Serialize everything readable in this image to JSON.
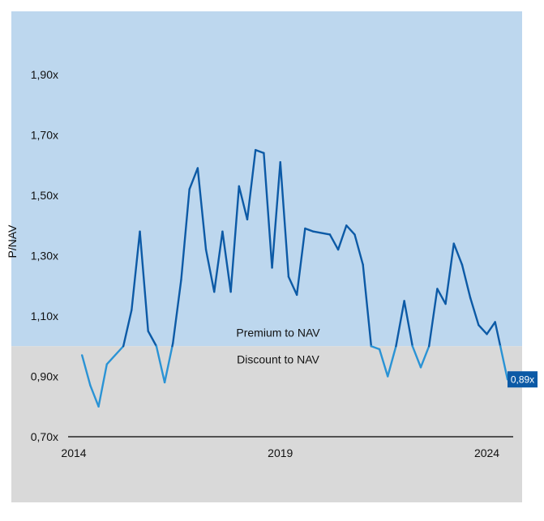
{
  "chart_data": {
    "type": "line",
    "ylabel": "P/NAV",
    "xlim": [
      2014.0,
      2024.9
    ],
    "ylim": [
      0.7,
      2.03
    ],
    "x_ticks": [
      {
        "value": 2014,
        "label": "2014"
      },
      {
        "value": 2019,
        "label": "2019"
      },
      {
        "value": 2024,
        "label": "2024"
      }
    ],
    "y_ticks": [
      {
        "value": 0.7,
        "label": "0,70x"
      },
      {
        "value": 0.9,
        "label": "0,90x"
      },
      {
        "value": 1.1,
        "label": "1,10x"
      },
      {
        "value": 1.3,
        "label": "1,30x"
      },
      {
        "value": 1.5,
        "label": "1,50x"
      },
      {
        "value": 1.7,
        "label": "1,70x"
      },
      {
        "value": 1.9,
        "label": "1,90x"
      }
    ],
    "threshold": 1.0,
    "premium_label": "Premium to NAV",
    "discount_label": "Discount to NAV",
    "end_label": "0,89x",
    "colors": {
      "premium_zone": "#bdd7ee",
      "discount_zone": "#d9d9d9",
      "line_premium": "#0c5aa6",
      "line_discount": "#2a93d5",
      "end_label_bg": "#0c5aa6",
      "axis": "#000000"
    },
    "grid": false,
    "series": [
      {
        "x": [
          2014.2,
          2014.4,
          2014.6,
          2014.8,
          2015.2,
          2015.4,
          2015.6,
          2015.8,
          2016.0,
          2016.2,
          2016.4,
          2016.6,
          2016.8,
          2017.0,
          2017.2,
          2017.4,
          2017.6,
          2017.8,
          2018.0,
          2018.2,
          2018.4,
          2018.6,
          2018.8,
          2019.0,
          2019.2,
          2019.4,
          2019.6,
          2019.8,
          2020.2,
          2020.4,
          2020.6,
          2020.8,
          2021.0,
          2021.2,
          2021.4,
          2021.6,
          2021.8,
          2022.0,
          2022.2,
          2022.4,
          2022.6,
          2022.8,
          2023.0,
          2023.2,
          2023.4,
          2023.6,
          2023.8,
          2024.0,
          2024.2,
          2024.5
        ],
        "y": [
          0.97,
          0.87,
          0.8,
          0.94,
          1.0,
          1.12,
          1.38,
          1.05,
          1.0,
          0.88,
          1.01,
          1.22,
          1.52,
          1.59,
          1.32,
          1.18,
          1.38,
          1.18,
          1.53,
          1.42,
          1.65,
          1.64,
          1.26,
          1.61,
          1.23,
          1.17,
          1.39,
          1.38,
          1.37,
          1.32,
          1.4,
          1.37,
          1.27,
          1.0,
          0.99,
          0.9,
          1.0,
          1.15,
          1.0,
          0.93,
          1.0,
          1.19,
          1.14,
          1.34,
          1.27,
          1.16,
          1.07,
          1.04,
          1.08,
          0.89
        ]
      }
    ]
  }
}
